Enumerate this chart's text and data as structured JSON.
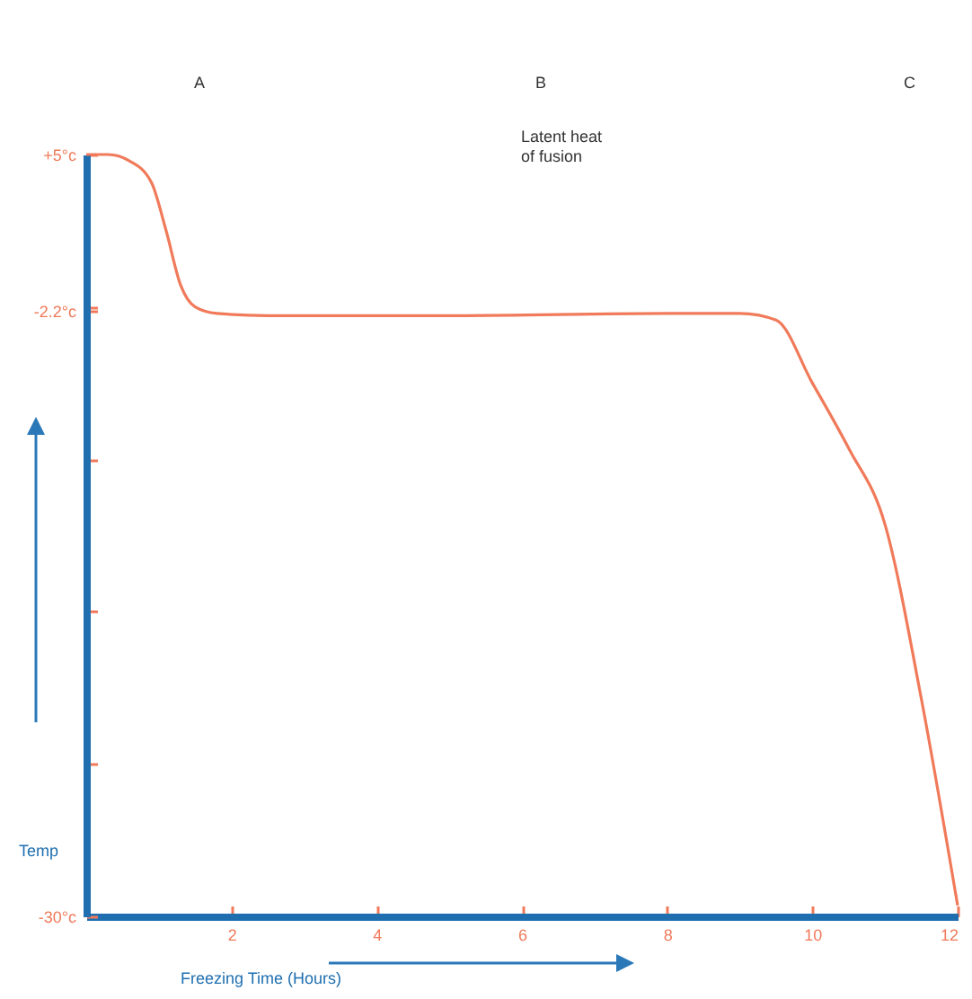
{
  "chart_data": {
    "type": "line",
    "xlabel": "Freezing Time (Hours)",
    "ylabel": "Temp",
    "annotations": [
      "A",
      "B",
      "C",
      "Latent heat of fusion"
    ],
    "x": [
      0,
      0.3,
      0.6,
      0.9,
      1.1,
      1.3,
      1.5,
      1.8,
      2.5,
      5,
      8,
      9,
      9.5,
      10,
      10.5,
      11,
      11.5,
      12
    ],
    "series": [
      {
        "color": "#f07a5a",
        "values": [
          5,
          5,
          4.7,
          3.7,
          1.5,
          -1.0,
          -2.0,
          -2.3,
          -2.4,
          -2.4,
          -2.3,
          -2.3,
          -2.6,
          -5.5,
          -8.5,
          -12,
          -20,
          -29.5
        ]
      }
    ],
    "xlim": [
      0,
      12
    ],
    "xticks": [
      2,
      4,
      6,
      8,
      10,
      12
    ],
    "ylim": [
      -30,
      5
    ],
    "yticks": [
      {
        "value": -30,
        "label": "-30°c"
      },
      {
        "value": -23,
        "label": null
      },
      {
        "value": -16,
        "label": null
      },
      {
        "value": -9,
        "label": null
      },
      {
        "value": -2.2,
        "label": "-2.2°c"
      },
      {
        "value": -2,
        "label": null
      },
      {
        "value": 5,
        "label": "+5°c"
      }
    ],
    "grid": false,
    "marker": "none",
    "line_style": "solid"
  }
}
